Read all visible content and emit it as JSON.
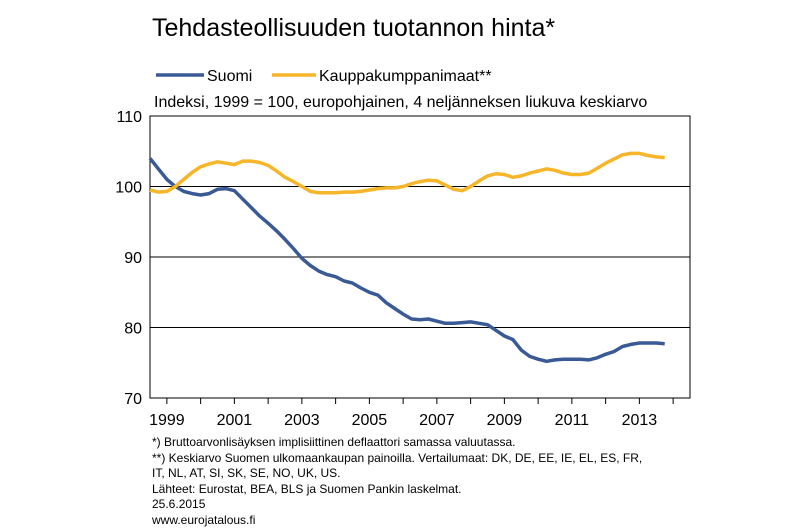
{
  "chart_data": {
    "type": "line",
    "title": "Tehdasteollisuuden tuotannon hinta*",
    "subtitle": "Indeksi, 1999 = 100, europohjainen, 4 neljänneksen liukuva keskiarvo",
    "ylim": [
      70,
      110
    ],
    "yticks": [
      "110",
      "100",
      "90",
      "80",
      "70"
    ],
    "xlim": [
      1998.5,
      2014.5
    ],
    "xticks": [
      "1999",
      "2001",
      "2003",
      "2005",
      "2007",
      "2009",
      "2011",
      "2013"
    ],
    "grid": "horizontal",
    "legend_position": "top-left",
    "series": [
      {
        "name": "Suomi",
        "color": "#3a5a96",
        "x": [
          1998.5,
          1998.75,
          1999.0,
          1999.25,
          1999.5,
          1999.75,
          2000.0,
          2000.25,
          2000.5,
          2000.75,
          2001.0,
          2001.25,
          2001.5,
          2001.75,
          2002.0,
          2002.25,
          2002.5,
          2002.75,
          2003.0,
          2003.25,
          2003.5,
          2003.75,
          2004.0,
          2004.25,
          2004.5,
          2004.75,
          2005.0,
          2005.25,
          2005.5,
          2005.75,
          2006.0,
          2006.25,
          2006.5,
          2006.75,
          2007.0,
          2007.25,
          2007.5,
          2007.75,
          2008.0,
          2008.25,
          2008.5,
          2008.75,
          2009.0,
          2009.25,
          2009.5,
          2009.75,
          2010.0,
          2010.25,
          2010.5,
          2010.75,
          2011.0,
          2011.25,
          2011.5,
          2011.75,
          2012.0,
          2012.25,
          2012.5,
          2012.75,
          2013.0,
          2013.25,
          2013.5,
          2013.75
        ],
        "values": [
          104.0,
          102.5,
          101.0,
          100.0,
          99.3,
          99.0,
          98.8,
          99.0,
          99.6,
          99.7,
          99.4,
          98.2,
          97.0,
          95.8,
          94.8,
          93.7,
          92.5,
          91.2,
          89.8,
          88.8,
          88.0,
          87.5,
          87.2,
          86.6,
          86.3,
          85.6,
          85.0,
          84.6,
          83.5,
          82.7,
          81.9,
          81.2,
          81.1,
          81.2,
          80.9,
          80.6,
          80.6,
          80.7,
          80.8,
          80.6,
          80.4,
          79.6,
          78.8,
          78.3,
          76.8,
          75.9,
          75.5,
          75.2,
          75.4,
          75.5,
          75.5,
          75.5,
          75.4,
          75.7,
          76.2,
          76.6,
          77.3,
          77.6,
          77.8,
          77.8,
          77.8,
          77.7
        ]
      },
      {
        "name": "Kauppakumppanimaat**",
        "color": "#f7b529",
        "x": [
          1998.5,
          1998.75,
          1999.0,
          1999.25,
          1999.5,
          1999.75,
          2000.0,
          2000.25,
          2000.5,
          2000.75,
          2001.0,
          2001.25,
          2001.5,
          2001.75,
          2002.0,
          2002.25,
          2002.5,
          2002.75,
          2003.0,
          2003.25,
          2003.5,
          2003.75,
          2004.0,
          2004.25,
          2004.5,
          2004.75,
          2005.0,
          2005.25,
          2005.5,
          2005.75,
          2006.0,
          2006.25,
          2006.5,
          2006.75,
          2007.0,
          2007.25,
          2007.5,
          2007.75,
          2008.0,
          2008.25,
          2008.5,
          2008.75,
          2009.0,
          2009.25,
          2009.5,
          2009.75,
          2010.0,
          2010.25,
          2010.5,
          2010.75,
          2011.0,
          2011.25,
          2011.5,
          2011.75,
          2012.0,
          2012.25,
          2012.5,
          2012.75,
          2013.0,
          2013.25,
          2013.5,
          2013.75
        ],
        "values": [
          99.5,
          99.2,
          99.3,
          100.0,
          101.0,
          102.0,
          102.8,
          103.2,
          103.5,
          103.3,
          103.1,
          103.6,
          103.6,
          103.4,
          103.0,
          102.2,
          101.3,
          100.7,
          100.0,
          99.3,
          99.1,
          99.1,
          99.1,
          99.2,
          99.2,
          99.3,
          99.5,
          99.7,
          99.8,
          99.8,
          100.0,
          100.4,
          100.7,
          100.9,
          100.8,
          100.2,
          99.6,
          99.4,
          100.0,
          100.8,
          101.5,
          101.8,
          101.7,
          101.3,
          101.5,
          101.9,
          102.2,
          102.5,
          102.3,
          101.9,
          101.7,
          101.7,
          101.9,
          102.6,
          103.3,
          103.9,
          104.5,
          104.7,
          104.7,
          104.4,
          104.2,
          104.1
        ]
      }
    ]
  },
  "notes": [
    "*) Bruttoarvonlisäyksen  implisiittinen  deflaattori samassa valuutassa.",
    "**) Keskiarvo Suomen ulkomaankaupan  painoilla. Vertailumaat: DK, DE, EE, IE, EL, ES, FR,",
    "IT, NL, AT, SI, SK, SE, NO, UK, US.",
    "Lähteet: Eurostat, BEA, BLS ja Suomen Pankin laskelmat.",
    "25.6.2015",
    "www.eurojatalous.fi"
  ]
}
